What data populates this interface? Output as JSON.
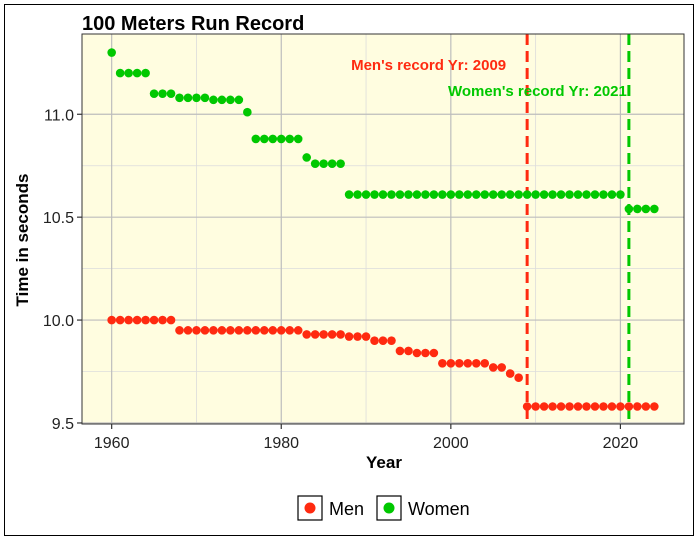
{
  "chart_data": {
    "type": "scatter",
    "title": "100 Meters Run Record",
    "xlabel": "Year",
    "ylabel": "Time in seconds",
    "xlim": [
      1956.5,
      2027.5
    ],
    "ylim": [
      9.495,
      11.39
    ],
    "x_ticks": [
      1960,
      1980,
      2000,
      2020
    ],
    "y_ticks": [
      9.5,
      10.0,
      10.5,
      11.0
    ],
    "y_tick_labels": [
      "9.5",
      "10.0",
      "10.5",
      "11.0"
    ],
    "grid": true,
    "background": "#fffde0",
    "legend_position": "bottom",
    "series": [
      {
        "name": "Men",
        "color": "#ff2a10",
        "x": [
          1960,
          1961,
          1962,
          1963,
          1964,
          1965,
          1966,
          1967,
          1968,
          1969,
          1970,
          1971,
          1972,
          1973,
          1974,
          1975,
          1976,
          1977,
          1978,
          1979,
          1980,
          1981,
          1982,
          1983,
          1984,
          1985,
          1986,
          1987,
          1988,
          1989,
          1990,
          1991,
          1992,
          1993,
          1994,
          1995,
          1996,
          1997,
          1998,
          1999,
          2000,
          2001,
          2002,
          2003,
          2004,
          2005,
          2006,
          2007,
          2008,
          2009,
          2010,
          2011,
          2012,
          2013,
          2014,
          2015,
          2016,
          2017,
          2018,
          2019,
          2020,
          2021,
          2022,
          2023,
          2024
        ],
        "y": [
          10.0,
          10.0,
          10.0,
          10.0,
          10.0,
          10.0,
          10.0,
          10.0,
          9.95,
          9.95,
          9.95,
          9.95,
          9.95,
          9.95,
          9.95,
          9.95,
          9.95,
          9.95,
          9.95,
          9.95,
          9.95,
          9.95,
          9.95,
          9.93,
          9.93,
          9.93,
          9.93,
          9.93,
          9.92,
          9.92,
          9.92,
          9.9,
          9.9,
          9.9,
          9.85,
          9.85,
          9.84,
          9.84,
          9.84,
          9.79,
          9.79,
          9.79,
          9.79,
          9.79,
          9.79,
          9.77,
          9.77,
          9.74,
          9.72,
          9.58,
          9.58,
          9.58,
          9.58,
          9.58,
          9.58,
          9.58,
          9.58,
          9.58,
          9.58,
          9.58,
          9.58,
          9.58,
          9.58,
          9.58,
          9.58
        ]
      },
      {
        "name": "Women",
        "color": "#00c800",
        "x": [
          1960,
          1961,
          1962,
          1963,
          1964,
          1965,
          1966,
          1967,
          1968,
          1969,
          1970,
          1971,
          1972,
          1973,
          1974,
          1975,
          1976,
          1977,
          1978,
          1979,
          1980,
          1981,
          1982,
          1983,
          1984,
          1985,
          1986,
          1987,
          1988,
          1989,
          1990,
          1991,
          1992,
          1993,
          1994,
          1995,
          1996,
          1997,
          1998,
          1999,
          2000,
          2001,
          2002,
          2003,
          2004,
          2005,
          2006,
          2007,
          2008,
          2009,
          2010,
          2011,
          2012,
          2013,
          2014,
          2015,
          2016,
          2017,
          2018,
          2019,
          2020,
          2021,
          2022,
          2023,
          2024
        ],
        "y": [
          11.3,
          11.2,
          11.2,
          11.2,
          11.2,
          11.1,
          11.1,
          11.1,
          11.08,
          11.08,
          11.08,
          11.08,
          11.07,
          11.07,
          11.07,
          11.07,
          11.01,
          10.88,
          10.88,
          10.88,
          10.88,
          10.88,
          10.88,
          10.79,
          10.76,
          10.76,
          10.76,
          10.76,
          10.61,
          10.61,
          10.61,
          10.61,
          10.61,
          10.61,
          10.61,
          10.61,
          10.61,
          10.61,
          10.61,
          10.61,
          10.61,
          10.61,
          10.61,
          10.61,
          10.61,
          10.61,
          10.61,
          10.61,
          10.61,
          10.61,
          10.61,
          10.61,
          10.61,
          10.61,
          10.61,
          10.61,
          10.61,
          10.61,
          10.61,
          10.61,
          10.61,
          10.54,
          10.54,
          10.54,
          10.54
        ]
      }
    ],
    "reference_lines": [
      {
        "x": 2009,
        "color": "#ff2a10",
        "label": "Men's record Yr: 2009"
      },
      {
        "x": 2021,
        "color": "#00c800",
        "label": "Women's record Yr: 2021"
      }
    ]
  }
}
